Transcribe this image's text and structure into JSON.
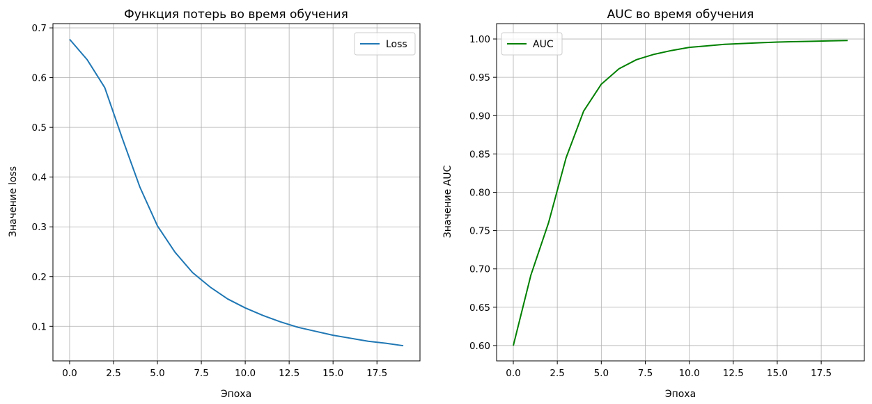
{
  "chart_data": [
    {
      "type": "line",
      "title": "Функция потерь во время обучения",
      "xlabel": "Эпоха",
      "ylabel": "Значение loss",
      "xlim": [
        -0.95,
        19.95
      ],
      "ylim": [
        0.0305,
        0.7085
      ],
      "xticks": [
        "0.0",
        "2.5",
        "5.0",
        "7.5",
        "10.0",
        "12.5",
        "15.0",
        "17.5"
      ],
      "yticks": [
        "0.1",
        "0.2",
        "0.3",
        "0.4",
        "0.5",
        "0.6",
        "0.7"
      ],
      "grid": true,
      "legend_position": "upper right",
      "series": [
        {
          "name": "Loss",
          "color": "#1f77b4",
          "x": [
            0,
            1,
            2,
            3,
            4,
            5,
            6,
            7,
            8,
            9,
            10,
            11,
            12,
            13,
            14,
            15,
            16,
            17,
            18,
            19
          ],
          "y": [
            0.677,
            0.636,
            0.58,
            0.478,
            0.38,
            0.302,
            0.249,
            0.208,
            0.179,
            0.155,
            0.137,
            0.122,
            0.109,
            0.098,
            0.09,
            0.082,
            0.076,
            0.07,
            0.066,
            0.061
          ]
        }
      ]
    },
    {
      "type": "line",
      "title": "AUC во время обучения",
      "xlabel": "Эпоха",
      "ylabel": "Значение AUC",
      "xlim": [
        -0.95,
        19.95
      ],
      "ylim": [
        0.58,
        1.02
      ],
      "xticks": [
        "0.0",
        "2.5",
        "5.0",
        "7.5",
        "10.0",
        "12.5",
        "15.0",
        "17.5"
      ],
      "yticks": [
        "0.60",
        "0.65",
        "0.70",
        "0.75",
        "0.80",
        "0.85",
        "0.90",
        "0.95",
        "1.00"
      ],
      "grid": true,
      "legend_position": "upper left",
      "series": [
        {
          "name": "AUC",
          "color": "#008000",
          "x": [
            0,
            1,
            2,
            3,
            4,
            5,
            6,
            7,
            8,
            9,
            10,
            11,
            12,
            13,
            14,
            15,
            16,
            17,
            18,
            19
          ],
          "y": [
            0.6,
            0.692,
            0.76,
            0.845,
            0.906,
            0.941,
            0.961,
            0.973,
            0.98,
            0.985,
            0.989,
            0.991,
            0.993,
            0.994,
            0.995,
            0.996,
            0.9965,
            0.997,
            0.9975,
            0.998
          ]
        }
      ]
    }
  ]
}
